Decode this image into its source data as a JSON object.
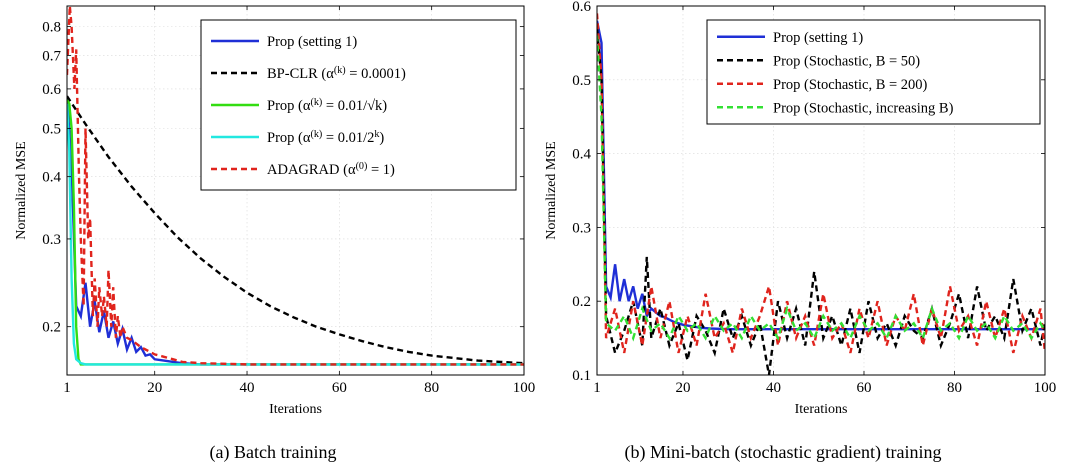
{
  "chart_data": [
    {
      "type": "line",
      "caption": "(a) Batch training",
      "title": "",
      "xlabel": "Iterations",
      "ylabel": "Normalized MSE",
      "xlim": [
        1,
        100
      ],
      "ylim": [
        0.16,
        0.88
      ],
      "yscale": "log",
      "xticks": [
        1,
        20,
        40,
        60,
        80,
        100
      ],
      "yticks": [
        0.2,
        0.3,
        0.4,
        0.5,
        0.6,
        0.7,
        0.8
      ],
      "xtick_labels": [
        "1",
        "20",
        "40",
        "60",
        "80",
        "100"
      ],
      "ytick_labels": [
        "0.2",
        "0.3",
        "0.4",
        "0.5",
        "0.6",
        "0.7",
        "0.8"
      ],
      "grid": true,
      "legend_position": "top-right",
      "series": [
        {
          "name": "Prop (setting 1)",
          "color": "#1f2fd6",
          "dash": "solid",
          "x": [
            1,
            2,
            3,
            4,
            5,
            6,
            7,
            8,
            9,
            10,
            11,
            12,
            13,
            14,
            15,
            16,
            17,
            18,
            19,
            20,
            22,
            24,
            26,
            30,
            40,
            60,
            80,
            100
          ],
          "y": [
            0.58,
            0.42,
            0.22,
            0.21,
            0.245,
            0.2,
            0.225,
            0.195,
            0.215,
            0.19,
            0.205,
            0.185,
            0.198,
            0.18,
            0.19,
            0.178,
            0.182,
            0.175,
            0.176,
            0.172,
            0.171,
            0.17,
            0.169,
            0.168,
            0.168,
            0.168,
            0.168,
            0.168
          ]
        },
        {
          "name": "BP-CLR (α^(k) = 0.0001)",
          "color": "#000000",
          "dash": "dashed",
          "x": [
            1,
            5,
            10,
            15,
            20,
            25,
            30,
            35,
            40,
            45,
            50,
            55,
            60,
            65,
            70,
            75,
            80,
            85,
            90,
            95,
            100
          ],
          "y": [
            0.58,
            0.51,
            0.438,
            0.382,
            0.338,
            0.302,
            0.274,
            0.252,
            0.234,
            0.22,
            0.209,
            0.2,
            0.193,
            0.187,
            0.182,
            0.178,
            0.175,
            0.173,
            0.171,
            0.17,
            0.169
          ]
        },
        {
          "name": "Prop (α^(k) = 0.01/√k)",
          "color": "#33dd11",
          "dash": "solid",
          "x": [
            1,
            1.5,
            2,
            2.5,
            3,
            3.5,
            4,
            5,
            10,
            100
          ],
          "y": [
            0.57,
            0.56,
            0.5,
            0.35,
            0.2,
            0.172,
            0.168,
            0.168,
            0.168,
            0.168
          ]
        },
        {
          "name": "Prop (α^(k) = 0.01/2^k)",
          "color": "#22e8e0",
          "dash": "solid",
          "x": [
            1,
            1.5,
            2,
            2.5,
            3,
            4,
            5,
            10,
            100
          ],
          "y": [
            0.56,
            0.45,
            0.25,
            0.185,
            0.172,
            0.169,
            0.168,
            0.168,
            0.168
          ]
        },
        {
          "name": "ADAGRAD (α^(0) = 1)",
          "color": "#e0241d",
          "dash": "dashed",
          "x": [
            1,
            1.6,
            2,
            2.6,
            3,
            3.6,
            4,
            4.6,
            5,
            5.6,
            6,
            6.6,
            7,
            7.6,
            8,
            8.6,
            9,
            9.6,
            10,
            10.6,
            11,
            11.6,
            12,
            12.6,
            13,
            14,
            15,
            16,
            17,
            18,
            19,
            20,
            22,
            24,
            26,
            30,
            40,
            60,
            80,
            100
          ],
          "y": [
            0.64,
            0.88,
            0.8,
            0.6,
            0.72,
            0.4,
            0.3,
            0.22,
            0.5,
            0.3,
            0.33,
            0.21,
            0.25,
            0.2,
            0.24,
            0.21,
            0.23,
            0.2,
            0.26,
            0.2,
            0.24,
            0.19,
            0.21,
            0.19,
            0.2,
            0.19,
            0.188,
            0.185,
            0.182,
            0.18,
            0.178,
            0.176,
            0.174,
            0.172,
            0.17,
            0.169,
            0.168,
            0.168,
            0.168,
            0.168
          ]
        }
      ]
    },
    {
      "type": "line",
      "caption": "(b) Mini-batch (stochastic gradient) training",
      "title": "",
      "xlabel": "Iterations",
      "ylabel": "Normalized MSE",
      "xlim": [
        1,
        100
      ],
      "ylim": [
        0.1,
        0.6
      ],
      "yscale": "linear",
      "xticks": [
        1,
        20,
        40,
        60,
        80,
        100
      ],
      "yticks": [
        0.1,
        0.2,
        0.3,
        0.4,
        0.5,
        0.6
      ],
      "xtick_labels": [
        "1",
        "20",
        "40",
        "60",
        "80",
        "100"
      ],
      "ytick_labels": [
        "0.1",
        "0.2",
        "0.3",
        "0.4",
        "0.5",
        "0.6"
      ],
      "grid": true,
      "legend_position": "top-right",
      "series": [
        {
          "name": "Prop (setting 1)",
          "color": "#1f2fd6",
          "dash": "solid",
          "x": [
            1,
            2,
            3,
            4,
            5,
            6,
            7,
            8,
            9,
            10,
            11,
            12,
            13,
            14,
            15,
            16,
            17,
            18,
            19,
            20,
            22,
            24,
            26,
            30,
            35,
            40,
            50,
            60,
            80,
            100
          ],
          "y": [
            0.58,
            0.55,
            0.22,
            0.205,
            0.25,
            0.2,
            0.23,
            0.2,
            0.22,
            0.19,
            0.21,
            0.18,
            0.19,
            0.185,
            0.18,
            0.178,
            0.175,
            0.172,
            0.17,
            0.168,
            0.166,
            0.164,
            0.163,
            0.162,
            0.162,
            0.162,
            0.162,
            0.162,
            0.162,
            0.162
          ]
        },
        {
          "name": "Prop (Stochastic, B = 50)",
          "color": "#000000",
          "dash": "dashed",
          "x": [
            1,
            2,
            3,
            5,
            7,
            9,
            11,
            12,
            13,
            15,
            17,
            19,
            21,
            23,
            25,
            27,
            29,
            31,
            33,
            35,
            37,
            39,
            41,
            43,
            45,
            47,
            49,
            51,
            53,
            55,
            57,
            59,
            61,
            63,
            65,
            67,
            69,
            71,
            73,
            75,
            77,
            79,
            81,
            83,
            85,
            87,
            89,
            91,
            93,
            95,
            97,
            99,
            100
          ],
          "y": [
            0.57,
            0.5,
            0.18,
            0.13,
            0.16,
            0.2,
            0.14,
            0.26,
            0.15,
            0.19,
            0.14,
            0.17,
            0.12,
            0.18,
            0.16,
            0.13,
            0.19,
            0.15,
            0.18,
            0.14,
            0.17,
            0.1,
            0.2,
            0.15,
            0.19,
            0.14,
            0.24,
            0.15,
            0.18,
            0.14,
            0.19,
            0.13,
            0.2,
            0.15,
            0.17,
            0.14,
            0.18,
            0.16,
            0.15,
            0.19,
            0.14,
            0.17,
            0.21,
            0.15,
            0.22,
            0.16,
            0.18,
            0.15,
            0.23,
            0.16,
            0.19,
            0.14,
            0.17
          ]
        },
        {
          "name": "Prop (Stochastic, B = 200)",
          "color": "#e0241d",
          "dash": "dashed",
          "x": [
            1,
            2,
            3,
            5,
            7,
            9,
            11,
            13,
            15,
            17,
            19,
            21,
            23,
            25,
            27,
            29,
            31,
            33,
            35,
            37,
            39,
            41,
            43,
            45,
            47,
            49,
            51,
            53,
            55,
            57,
            59,
            61,
            63,
            65,
            67,
            69,
            71,
            73,
            75,
            77,
            79,
            81,
            83,
            85,
            87,
            89,
            91,
            93,
            95,
            97,
            99,
            100
          ],
          "y": [
            0.59,
            0.5,
            0.15,
            0.19,
            0.13,
            0.2,
            0.14,
            0.22,
            0.15,
            0.2,
            0.13,
            0.18,
            0.14,
            0.21,
            0.15,
            0.17,
            0.13,
            0.19,
            0.15,
            0.18,
            0.22,
            0.14,
            0.2,
            0.15,
            0.18,
            0.14,
            0.21,
            0.15,
            0.17,
            0.13,
            0.19,
            0.15,
            0.2,
            0.14,
            0.18,
            0.16,
            0.21,
            0.14,
            0.19,
            0.15,
            0.22,
            0.16,
            0.18,
            0.14,
            0.2,
            0.15,
            0.19,
            0.13,
            0.18,
            0.15,
            0.19,
            0.13
          ]
        },
        {
          "name": "Prop (Stochastic, increasing B)",
          "color": "#33e033",
          "dash": "dashed",
          "x": [
            1,
            2,
            3,
            5,
            7,
            9,
            11,
            13,
            15,
            17,
            19,
            21,
            23,
            25,
            27,
            29,
            31,
            33,
            35,
            37,
            39,
            41,
            43,
            45,
            47,
            49,
            51,
            53,
            55,
            57,
            59,
            61,
            63,
            65,
            67,
            69,
            71,
            73,
            75,
            77,
            79,
            81,
            83,
            85,
            87,
            89,
            91,
            93,
            95,
            97,
            99,
            100
          ],
          "y": [
            0.56,
            0.45,
            0.17,
            0.16,
            0.18,
            0.15,
            0.19,
            0.16,
            0.17,
            0.15,
            0.18,
            0.16,
            0.17,
            0.15,
            0.18,
            0.16,
            0.17,
            0.15,
            0.18,
            0.16,
            0.17,
            0.15,
            0.19,
            0.16,
            0.17,
            0.15,
            0.18,
            0.16,
            0.17,
            0.15,
            0.18,
            0.16,
            0.17,
            0.15,
            0.18,
            0.16,
            0.17,
            0.15,
            0.19,
            0.16,
            0.17,
            0.15,
            0.18,
            0.16,
            0.17,
            0.15,
            0.18,
            0.16,
            0.17,
            0.15,
            0.17,
            0.16
          ]
        }
      ]
    }
  ]
}
